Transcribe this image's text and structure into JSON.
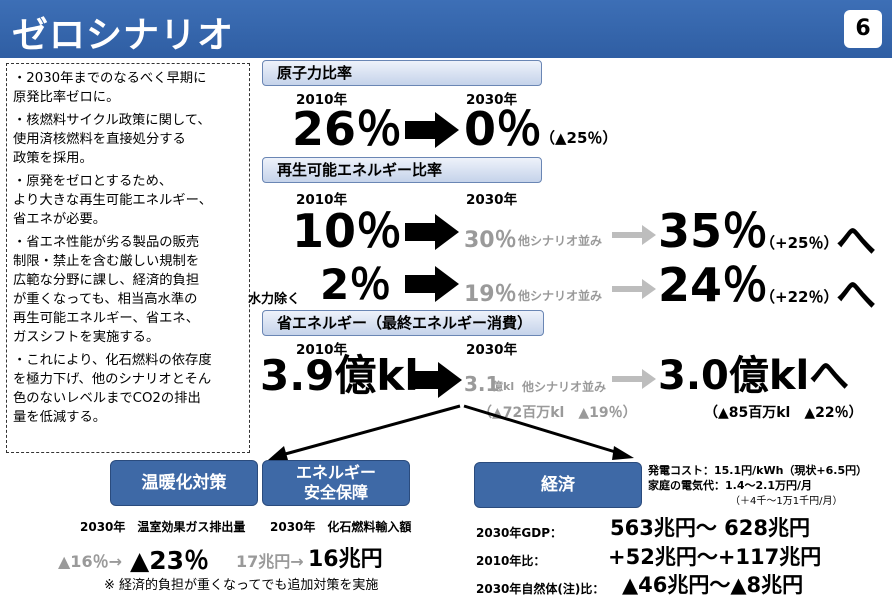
{
  "header": {
    "title": "ゼロシナリオ",
    "page_number": "6"
  },
  "left_panel": {
    "bullets": [
      "・2030年までのなるべく早期に\n原発比率ゼロに。",
      "・核燃料サイクル政策に関して、\n使用済核燃料を直接処分する\n政策を採用。",
      "・原発をゼロとするため、\nより大きな再生可能エネルギー、\n省エネが必要。",
      "・省エネ性能が劣る製品の販売\n制限・禁止を含む厳しい規制を\n広範な分野に課し、経済的負担\nが重くなっても、相当高水準の\n再生可能エネルギー、省エネ、\nガスシフトを実施する。",
      "・これにより、化石燃料の依存度\nを極力下げ、他のシナリオとそん\n色のないレベルまでCO2の排出\n量を低減する。"
    ]
  },
  "nuclear": {
    "header": "原子力比率",
    "year_2010": "2010年",
    "year_2030": "2030年",
    "value_2010": "26％",
    "value_2030": "0％",
    "change": "（▲25％）"
  },
  "renewable": {
    "header": "再生可能エネルギー比率",
    "year_2010": "2010年",
    "year_2030": "2030年",
    "row1": {
      "value_2010": "10％",
      "other_value": "30％",
      "other_label": "他シナリオ並み",
      "value_2030": "35％",
      "change": "（+25％）",
      "suffix": "へ"
    },
    "row2": {
      "prefix": "水力除く",
      "value_2010": "2％",
      "other_value": "19％",
      "other_label": "他シナリオ並み",
      "value_2030": "24％",
      "change": "（+22％）",
      "suffix": "へ"
    }
  },
  "savings": {
    "header": "省エネルギー（最終エネルギー消費）",
    "year_2010": "2010年",
    "year_2030": "2030年",
    "value_2010": "3.9億kl",
    "other_value": "3.1",
    "other_unit": "億kl",
    "other_label": "他シナリオ並み",
    "value_2030": "3.0億klへ",
    "other_change": "（▲72百万kl　▲19％）",
    "change": "（▲85百万kl　▲22％）"
  },
  "bottom": {
    "warming": {
      "box_label": "温暖化対策",
      "caption": "2030年　温室効果ガス排出量",
      "other": "▲16％→",
      "value": "▲23％"
    },
    "security": {
      "box_label_1": "エネルギー",
      "box_label_2": "安全保障",
      "caption": "2030年　化石燃料輸入額",
      "other": "17兆円→",
      "value": "16兆円"
    },
    "footnote": "※ 経済的負担が重くなってでも追加対策を実施",
    "economy": {
      "box_label": "経済",
      "power_cost": "発電コスト：15.1円/kWh（現状+6.5円）",
      "household": "家庭の電気代：1.4～2.1万円/月",
      "household_sub": "（＋4千～1万1千円/月）",
      "rows": [
        {
          "label": "2030年GDP：",
          "value": "563兆円～ 628兆円"
        },
        {
          "label": "2010年比：",
          "value": "+52兆円～+117兆円"
        },
        {
          "label": "2030年自然体(注)比：",
          "value": "▲46兆円～▲8兆円"
        }
      ]
    }
  },
  "colors": {
    "title_bar": "#2f5ea3",
    "category_box": "#3e69a6",
    "gray_text": "#9a9a9a"
  }
}
